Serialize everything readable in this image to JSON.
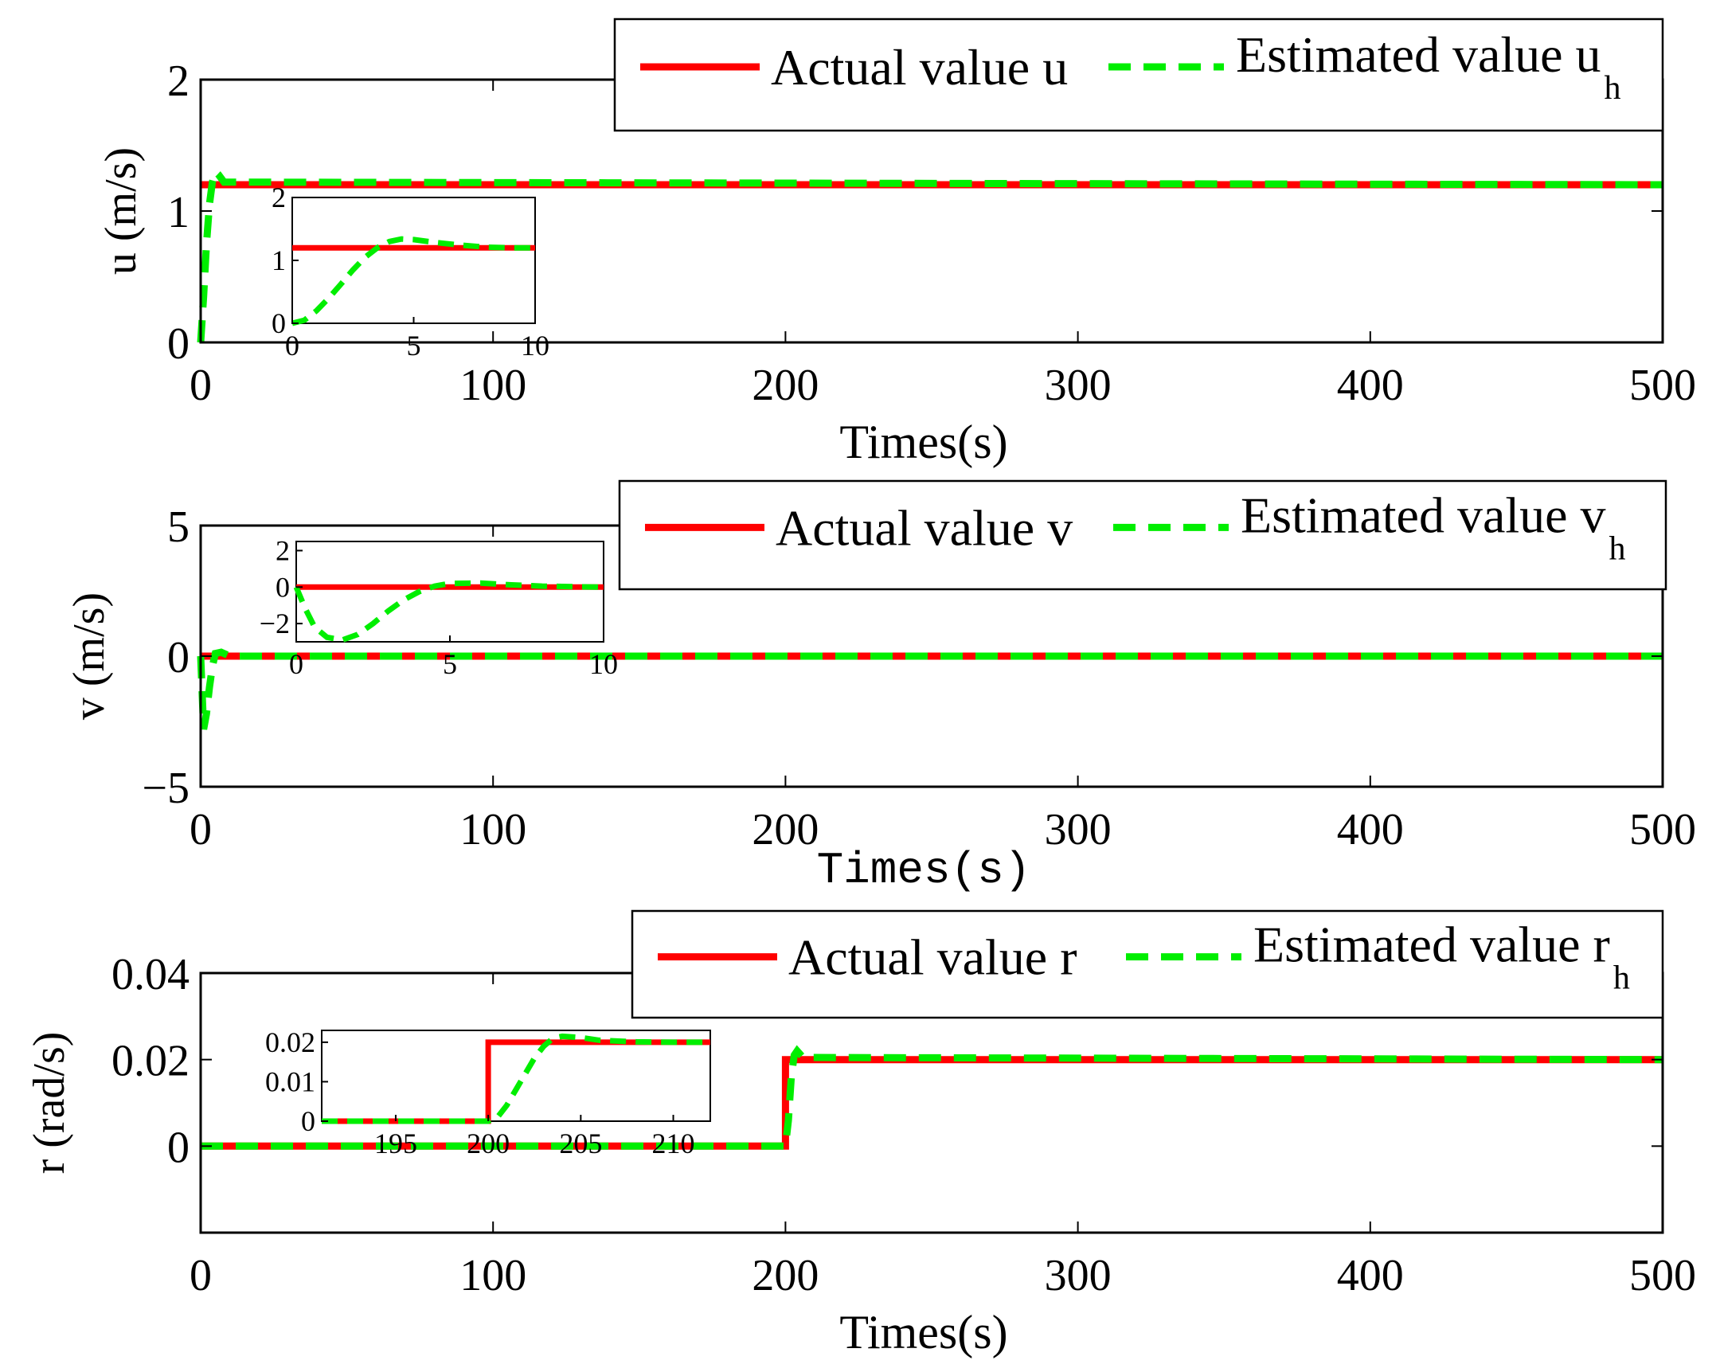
{
  "chart_data": [
    {
      "type": "line",
      "ylabel": "u (m/s)",
      "xlabel": "Times(s)",
      "xlim": [
        0,
        500
      ],
      "ylim": [
        0,
        2
      ],
      "xticks": [
        "0",
        "100",
        "200",
        "300",
        "400",
        "500"
      ],
      "yticks": [
        "0",
        "1",
        "2"
      ],
      "legend": {
        "actual": "Actual value u",
        "estimated": "Estimated value u",
        "estimated_sub": "h"
      },
      "series": [
        {
          "name": "Actual value u",
          "x": [
            0,
            500
          ],
          "values": [
            1.2,
            1.2
          ]
        },
        {
          "name": "Estimated value u_h",
          "x": [
            0,
            1,
            2,
            3,
            4,
            5,
            6,
            8,
            500
          ],
          "values": [
            0,
            0.35,
            0.75,
            1.05,
            1.22,
            1.3,
            1.28,
            1.22,
            1.2
          ]
        }
      ],
      "inset": {
        "xlim": [
          0,
          10
        ],
        "ylim": [
          0,
          2
        ],
        "xticks": [
          "0",
          "5",
          "10"
        ],
        "yticks": [
          "0",
          "1",
          "2"
        ],
        "series": [
          {
            "name": "Actual value u",
            "x": [
              0,
              10
            ],
            "values": [
              1.2,
              1.2
            ]
          },
          {
            "name": "Estimated value u_h",
            "x": [
              0,
              0.5,
              1,
              1.5,
              2,
              2.5,
              3,
              3.5,
              4,
              4.5,
              5,
              6,
              7,
              8,
              9,
              10
            ],
            "values": [
              0,
              0.05,
              0.2,
              0.4,
              0.62,
              0.85,
              1.05,
              1.2,
              1.3,
              1.34,
              1.33,
              1.28,
              1.24,
              1.21,
              1.2,
              1.2
            ]
          }
        ]
      }
    },
    {
      "type": "line",
      "ylabel": "v (m/s)",
      "xlabel": "Times(s)",
      "xlim": [
        0,
        500
      ],
      "ylim": [
        -5,
        5
      ],
      "xticks": [
        "0",
        "100",
        "200",
        "300",
        "400",
        "500"
      ],
      "yticks": [
        "−5",
        "0",
        "5"
      ],
      "legend": {
        "actual": "Actual value v",
        "estimated": "Estimated value v",
        "estimated_sub": "h"
      },
      "series": [
        {
          "name": "Actual value v",
          "x": [
            0,
            500
          ],
          "values": [
            0,
            0
          ]
        },
        {
          "name": "Estimated value v_h",
          "x": [
            0,
            1,
            2,
            3,
            4,
            5,
            7,
            10,
            500
          ],
          "values": [
            0,
            -2.8,
            -2.2,
            -1.2,
            -0.4,
            0.1,
            0.15,
            0,
            0
          ]
        }
      ],
      "inset": {
        "xlim": [
          0,
          10
        ],
        "ylim": [
          -3,
          2.5
        ],
        "xticks": [
          "0",
          "5",
          "10"
        ],
        "yticks": [
          "−2",
          "0",
          "2"
        ],
        "series": [
          {
            "name": "Actual value v",
            "x": [
              0,
              10
            ],
            "values": [
              0,
              0
            ]
          },
          {
            "name": "Estimated value v_h",
            "x": [
              0,
              0.3,
              0.6,
              1,
              1.5,
              2,
              2.5,
              3,
              3.5,
              4,
              4.5,
              5,
              6,
              7,
              8,
              9,
              10
            ],
            "values": [
              0,
              -1.2,
              -2.2,
              -2.75,
              -2.9,
              -2.6,
              -2.0,
              -1.3,
              -0.7,
              -0.25,
              0.05,
              0.2,
              0.22,
              0.12,
              0.05,
              0.02,
              0
            ]
          }
        ]
      }
    },
    {
      "type": "line",
      "ylabel": "r (rad/s)",
      "xlabel": "Times(s)",
      "xlim": [
        0,
        500
      ],
      "ylim": [
        -0.02,
        0.04
      ],
      "xticks": [
        "0",
        "100",
        "200",
        "300",
        "400",
        "500"
      ],
      "yticks": [
        "0",
        "0.02",
        "0.04"
      ],
      "legend": {
        "actual": "Actual value r",
        "estimated": "Estimated value r",
        "estimated_sub": "h"
      },
      "series": [
        {
          "name": "Actual value r",
          "x": [
            0,
            200,
            200,
            500
          ],
          "values": [
            0,
            0,
            0.02,
            0.02
          ]
        },
        {
          "name": "Estimated value r_h",
          "x": [
            0,
            200,
            201,
            202,
            203,
            204,
            206,
            500
          ],
          "values": [
            0,
            0,
            0.006,
            0.016,
            0.021,
            0.022,
            0.0205,
            0.02
          ]
        }
      ],
      "inset": {
        "xlim": [
          191,
          212
        ],
        "ylim": [
          0,
          0.023
        ],
        "xticks": [
          "195",
          "200",
          "205",
          "210"
        ],
        "yticks": [
          "0",
          "0.01",
          "0.02"
        ],
        "series": [
          {
            "name": "Actual value r",
            "x": [
              191,
              200,
              200,
              212
            ],
            "values": [
              0,
              0,
              0.02,
              0.02
            ]
          },
          {
            "name": "Estimated value r_h",
            "x": [
              191,
              200,
              200.5,
              201,
              201.5,
              202,
              202.5,
              203,
              203.5,
              204,
              205,
              206,
              208,
              210,
              212
            ],
            "values": [
              0,
              0,
              0.001,
              0.004,
              0.008,
              0.012,
              0.016,
              0.019,
              0.021,
              0.0215,
              0.0212,
              0.0205,
              0.0201,
              0.02,
              0.02
            ]
          }
        ]
      }
    }
  ]
}
